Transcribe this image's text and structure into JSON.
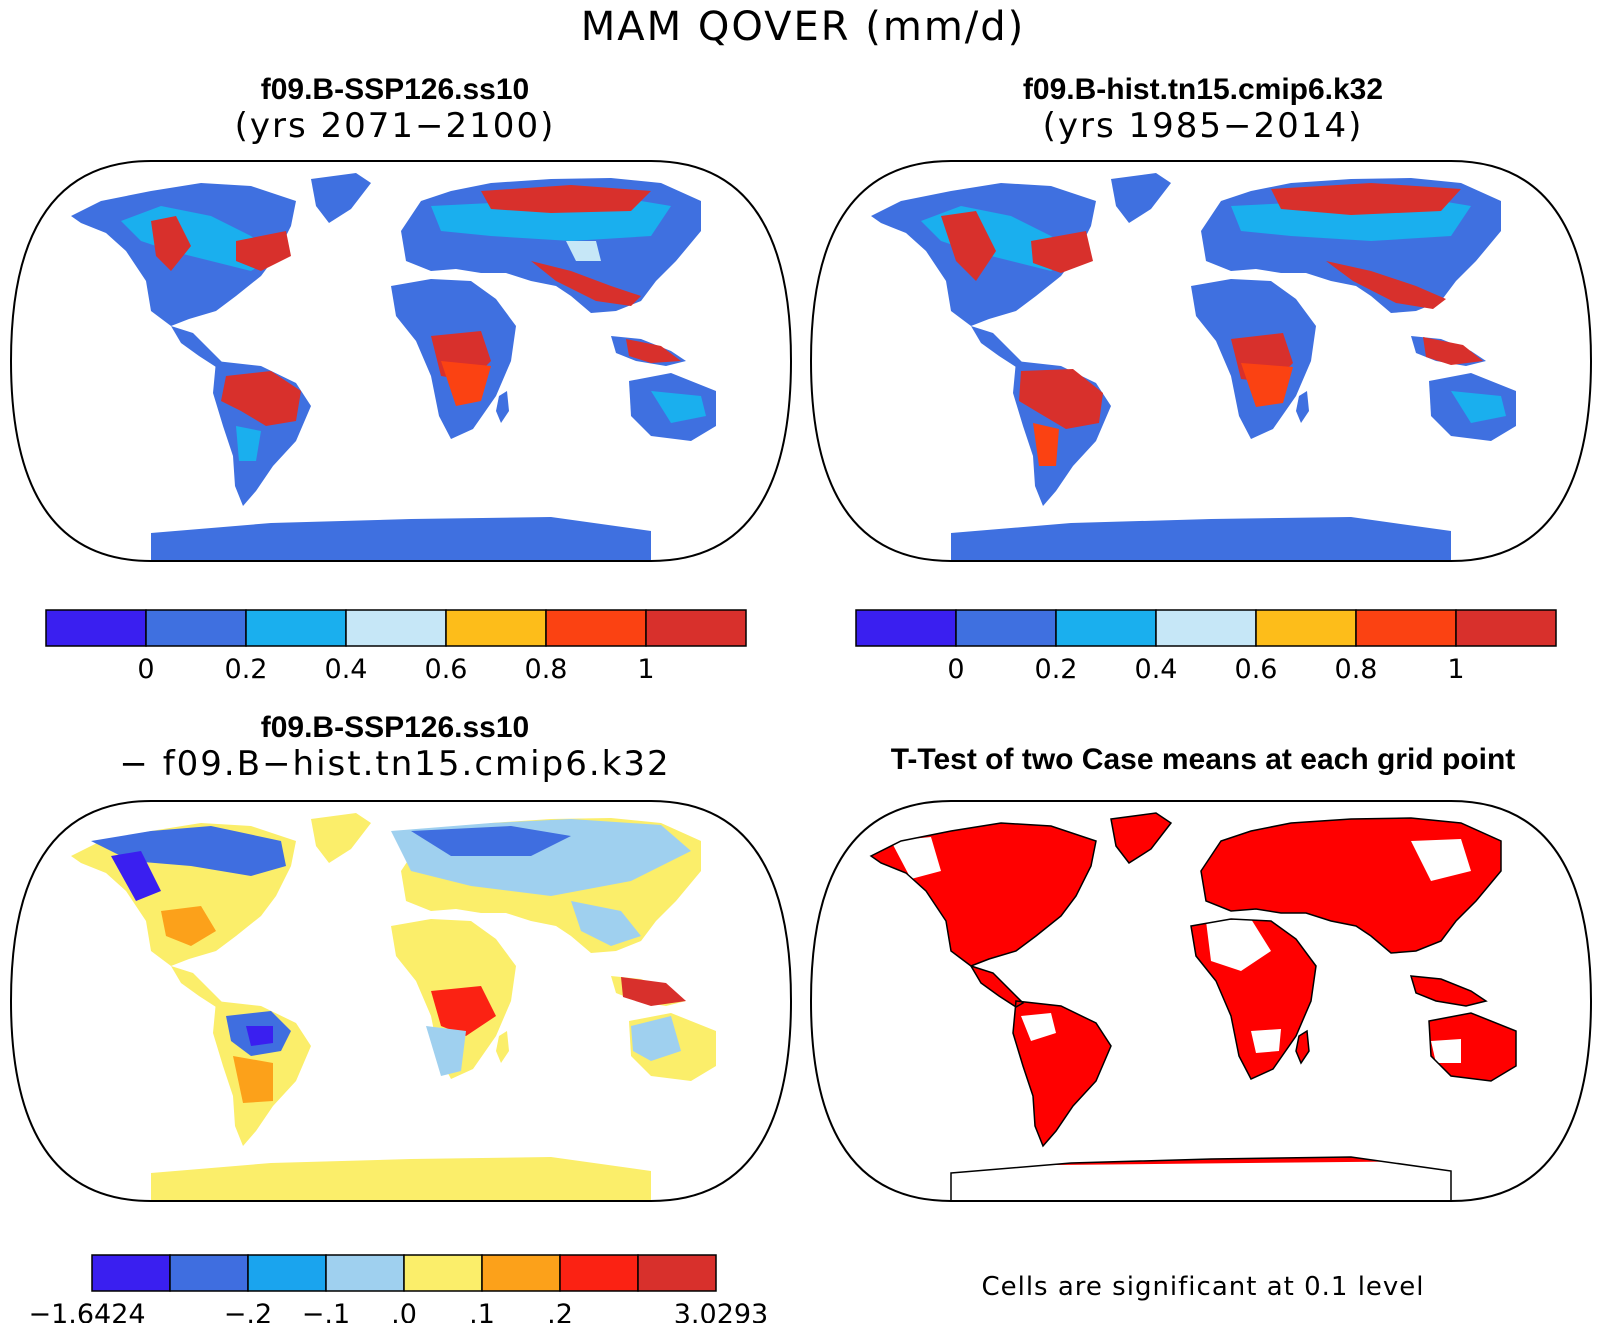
{
  "title": "MAM QOVER (mm/d)",
  "panels": [
    {
      "title_line1": "f09.B-SSP126.ss10",
      "title_line2": "(yrs 2071−2100)"
    },
    {
      "title_line1": "f09.B-hist.tn15.cmip6.k32",
      "title_line2": "(yrs 1985−2014)"
    },
    {
      "title_line1": "f09.B-SSP126.ss10",
      "title_line2": "− f09.B−hist.tn15.cmip6.k32"
    },
    {
      "title_line1": "T-Test of two Case means at each grid point",
      "title_line2": ""
    }
  ],
  "colorbars": {
    "case": {
      "colors": [
        "#3a1ff0",
        "#3f70e0",
        "#1aafee",
        "#c6e7f7",
        "#fdbd1a",
        "#fb4212",
        "#d8302c"
      ],
      "labels": [
        "0",
        "0.2",
        "0.4",
        "0.6",
        "0.8",
        "1"
      ]
    },
    "diff": {
      "colors": [
        "#3a1ff0",
        "#3f6ee0",
        "#1aa4ee",
        "#9fd0ef",
        "#fbee6a",
        "#fca11a",
        "#fb2213",
        "#d8302c"
      ],
      "labels": [
        "−1.6424",
        "−.2",
        "−.1",
        ".0",
        ".1",
        ".2",
        "3.0293"
      ]
    }
  },
  "ttest_note": "Cells are significant at 0.1 level"
}
